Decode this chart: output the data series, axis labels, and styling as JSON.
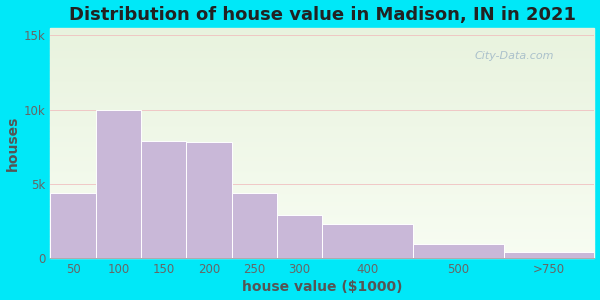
{
  "title": "Distribution of house value in Madison, IN in 2021",
  "xlabel": "house value ($1000)",
  "ylabel": "houses",
  "bar_labels": [
    "50",
    "100",
    "150",
    "200",
    "250",
    "300",
    "400",
    "500",
    ">750"
  ],
  "bar_edges": [
    0,
    1,
    2,
    3,
    4,
    5,
    6,
    8,
    10,
    12
  ],
  "bar_values": [
    4400,
    10000,
    7900,
    7800,
    4400,
    2900,
    2300,
    1000,
    400
  ],
  "bar_color": "#c9b8d8",
  "bar_edge_color": "#ffffff",
  "yticks": [
    0,
    5000,
    10000,
    15000
  ],
  "ytick_labels": [
    "0",
    "5k",
    "10k",
    "15k"
  ],
  "ylim": [
    0,
    15500
  ],
  "bg_outer": "#00e8f8",
  "title_fontsize": 13,
  "axis_label_fontsize": 10,
  "tick_fontsize": 8.5,
  "watermark": "City-Data.com"
}
